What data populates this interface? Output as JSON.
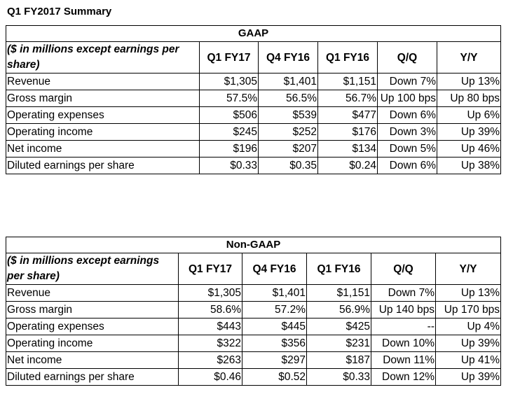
{
  "title": "Q1 FY2017 Summary",
  "header_label": "($ in millions except earnings per share)",
  "columns": [
    "Q1 FY17",
    "Q4 FY16",
    "Q1 FY16",
    "Q/Q",
    "Y/Y"
  ],
  "gaap": {
    "section": "GAAP",
    "rows": [
      {
        "label": "Revenue",
        "values": [
          "$1,305",
          "$1,401",
          "$1,151",
          "Down 7%",
          "Up 13%"
        ]
      },
      {
        "label": "Gross margin",
        "values": [
          "57.5%",
          "56.5%",
          "56.7%",
          "Up 100 bps",
          "Up 80 bps"
        ]
      },
      {
        "label": "Operating expenses",
        "values": [
          "$506",
          "$539",
          "$477",
          "Down 6%",
          "Up 6%"
        ]
      },
      {
        "label": "Operating income",
        "values": [
          "$245",
          "$252",
          "$176",
          "Down 3%",
          "Up 39%"
        ]
      },
      {
        "label": "Net income",
        "values": [
          "$196",
          "$207",
          "$134",
          "Down 5%",
          "Up 46%"
        ]
      },
      {
        "label": "Diluted earnings per share",
        "values": [
          "$0.33",
          "$0.35",
          "$0.24",
          "Down 6%",
          "Up 38%"
        ]
      }
    ]
  },
  "nongaap": {
    "section": "Non-GAAP",
    "rows": [
      {
        "label": "Revenue",
        "values": [
          "$1,305",
          "$1,401",
          "$1,151",
          "Down 7%",
          "Up 13%"
        ]
      },
      {
        "label": "Gross margin",
        "values": [
          "58.6%",
          "57.2%",
          "56.9%",
          "Up 140 bps",
          "Up 170 bps"
        ]
      },
      {
        "label": "Operating expenses",
        "values": [
          "$443",
          "$445",
          "$425",
          "--",
          "Up 4%"
        ]
      },
      {
        "label": "Operating income",
        "values": [
          "$322",
          "$356",
          "$231",
          "Down 10%",
          "Up 39%"
        ]
      },
      {
        "label": "Net income",
        "values": [
          "$263",
          "$297",
          "$187",
          "Down 11%",
          "Up 41%"
        ]
      },
      {
        "label": "Diluted earnings per share",
        "values": [
          "$0.46",
          "$0.52",
          "$0.33",
          "Down 12%",
          "Up 39%"
        ]
      }
    ]
  }
}
